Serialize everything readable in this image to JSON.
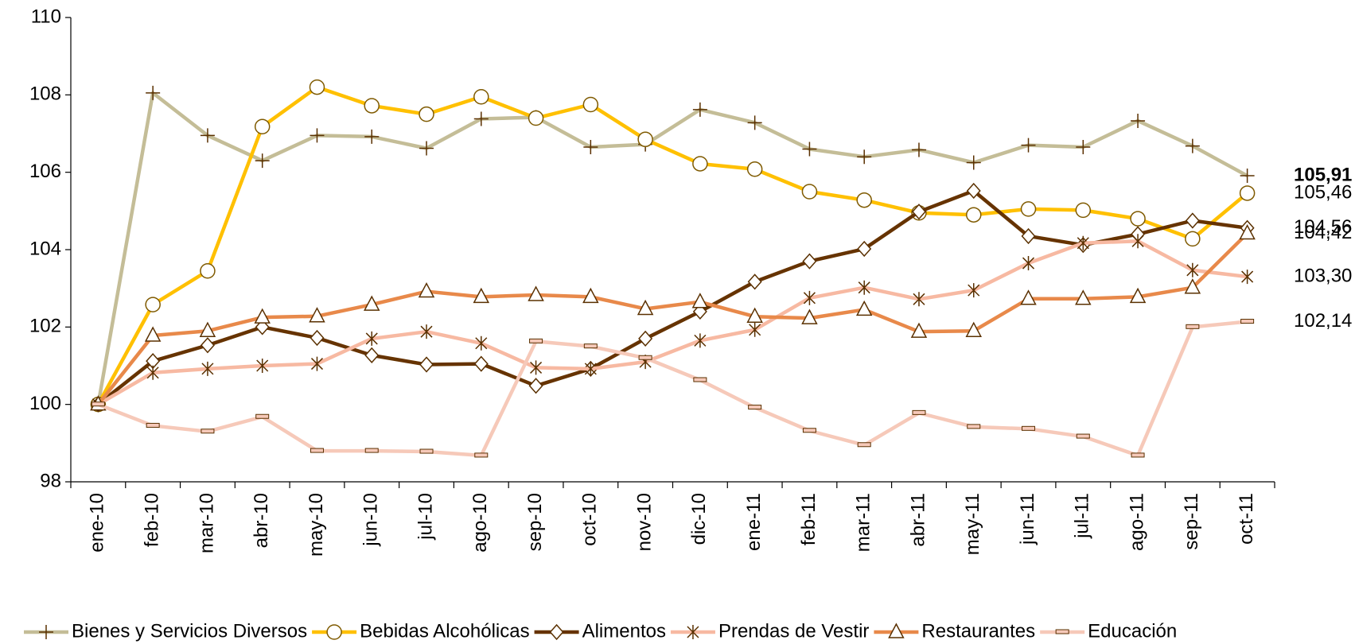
{
  "chart_data": {
    "type": "line",
    "categories": [
      "ene-10",
      "feb-10",
      "mar-10",
      "abr-10",
      "may-10",
      "jun-10",
      "jul-10",
      "ago-10",
      "sep-10",
      "oct-10",
      "nov-10",
      "dic-10",
      "ene-11",
      "feb-11",
      "mar-11",
      "abr-11",
      "may-11",
      "jun-11",
      "jul-11",
      "ago-11",
      "sep-11",
      "oct-11"
    ],
    "ylim": [
      98,
      110
    ],
    "yticks": [
      98,
      100,
      102,
      104,
      106,
      108,
      110
    ],
    "series": [
      {
        "name": "Bienes y Servicios Diversos",
        "color": "#C4BD97",
        "marker": "plus",
        "label_color": "#C4BD97",
        "label_bold": true,
        "values": [
          100,
          108.05,
          106.95,
          106.3,
          106.95,
          106.92,
          106.62,
          107.38,
          107.42,
          106.65,
          106.72,
          107.62,
          107.28,
          106.6,
          106.4,
          106.58,
          106.25,
          106.7,
          106.65,
          107.33,
          106.68,
          105.91
        ],
        "value_labels": [
          null,
          null,
          null,
          null,
          null,
          null,
          null,
          null,
          null,
          null,
          null,
          null,
          null,
          null,
          null,
          null,
          null,
          null,
          null,
          null,
          null,
          "105,91"
        ]
      },
      {
        "name": "Bebidas Alcohólicas",
        "color": "#FFC000",
        "marker": "circle",
        "label_color": "#FFC000",
        "label_bold": false,
        "values": [
          100,
          102.58,
          103.45,
          107.18,
          108.2,
          107.72,
          107.5,
          107.95,
          107.4,
          107.75,
          106.85,
          106.22,
          106.08,
          105.5,
          105.28,
          104.95,
          104.9,
          105.05,
          105.02,
          104.8,
          104.28,
          105.46
        ],
        "value_labels": [
          null,
          null,
          null,
          null,
          null,
          null,
          null,
          null,
          null,
          null,
          null,
          null,
          null,
          null,
          null,
          null,
          null,
          null,
          null,
          null,
          null,
          "105,46"
        ]
      },
      {
        "name": "Alimentos",
        "color": "#663300",
        "marker": "diamond",
        "label_color": "#663300",
        "label_bold": false,
        "values": [
          100,
          101.12,
          101.53,
          102.0,
          101.72,
          101.27,
          101.03,
          101.05,
          100.48,
          100.92,
          101.7,
          102.4,
          103.17,
          103.7,
          104.02,
          104.98,
          105.52,
          104.35,
          104.12,
          104.4,
          104.75,
          104.56
        ],
        "value_labels": [
          null,
          null,
          null,
          null,
          null,
          null,
          null,
          null,
          null,
          null,
          null,
          null,
          null,
          null,
          null,
          null,
          null,
          null,
          null,
          null,
          null,
          "104,56"
        ]
      },
      {
        "name": "Prendas de Vestir",
        "color": "#F7B9A2",
        "marker": "asterisk",
        "label_color": "#000000",
        "label_bold": false,
        "values": [
          100,
          100.82,
          100.92,
          101.0,
          101.05,
          101.7,
          101.88,
          101.58,
          100.95,
          100.92,
          101.1,
          101.65,
          101.93,
          102.75,
          103.02,
          102.72,
          102.95,
          103.65,
          104.17,
          104.22,
          103.47,
          103.3
        ],
        "value_labels": [
          null,
          null,
          null,
          null,
          null,
          null,
          null,
          null,
          null,
          null,
          null,
          null,
          null,
          null,
          null,
          null,
          null,
          null,
          null,
          null,
          null,
          "103,30"
        ]
      },
      {
        "name": "Restaurantes",
        "color": "#E8894A",
        "marker": "triangle",
        "label_color": "#000000",
        "label_bold": false,
        "values": [
          100,
          101.78,
          101.9,
          102.25,
          102.28,
          102.58,
          102.92,
          102.78,
          102.83,
          102.78,
          102.47,
          102.65,
          102.27,
          102.23,
          102.45,
          101.88,
          101.9,
          102.73,
          102.73,
          102.78,
          103.02,
          104.42
        ],
        "value_labels": [
          null,
          null,
          null,
          null,
          null,
          null,
          null,
          null,
          null,
          null,
          null,
          null,
          null,
          null,
          null,
          null,
          null,
          null,
          null,
          null,
          null,
          "104,42"
        ]
      },
      {
        "name": "Educación",
        "color": "#F6C9B9",
        "marker": "dash",
        "label_color": "#F4A3A3",
        "label_bold": false,
        "values": [
          100,
          99.45,
          99.3,
          99.68,
          98.8,
          98.8,
          98.78,
          98.68,
          101.63,
          101.5,
          101.2,
          100.63,
          99.92,
          99.32,
          98.95,
          99.78,
          99.42,
          99.37,
          99.17,
          98.68,
          102.0,
          102.14
        ],
        "value_labels": [
          null,
          null,
          null,
          null,
          null,
          null,
          null,
          null,
          null,
          null,
          null,
          null,
          null,
          null,
          null,
          null,
          null,
          null,
          null,
          null,
          null,
          "102,14"
        ]
      }
    ]
  }
}
